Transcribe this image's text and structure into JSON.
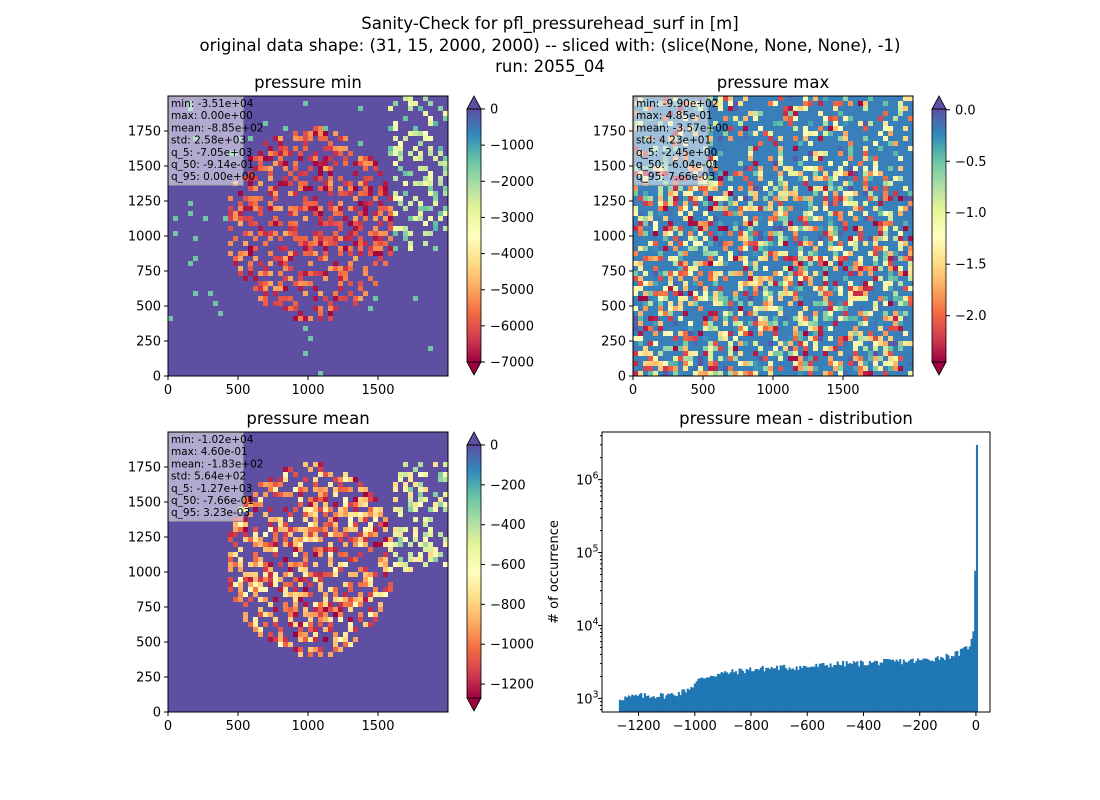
{
  "suptitle": [
    "Sanity-Check for pfl_pressurehead_surf in [m]",
    "original data shape: (31, 15, 2000, 2000) -- sliced with: (slice(None, None, None), -1)",
    "run: 2055_04"
  ],
  "colors": {
    "spectral_stops": [
      "#9e0142",
      "#d53e4f",
      "#f46d43",
      "#fdae61",
      "#fee08b",
      "#ffffbf",
      "#e6f598",
      "#abdda4",
      "#66c2a5",
      "#3288bd",
      "#5e4fa2"
    ],
    "hist_bar": "#1f77b4",
    "stats_box_bg": "#f5f5f5"
  },
  "chart_data": [
    {
      "type": "heatmap",
      "title": "pressure min",
      "xticks": [
        "0",
        "500",
        "1000",
        "1500"
      ],
      "yticks": [
        "0",
        "250",
        "500",
        "750",
        "1000",
        "1250",
        "1500",
        "1750"
      ],
      "xlim": [
        0,
        2000
      ],
      "ylim": [
        0,
        2000
      ],
      "colormap": "Spectral",
      "vmin": -7000,
      "vmax": 0,
      "colorbar_ticks": [
        "0",
        "−1000",
        "−2000",
        "−3000",
        "−4000",
        "−5000",
        "−6000",
        "−7000"
      ],
      "colorbar_tick_values": [
        0,
        -1000,
        -2000,
        -3000,
        -4000,
        -5000,
        -6000,
        -7000
      ],
      "extend_top_color": "#5e4fa2",
      "extend_bottom_color": "#9e0142",
      "background_value": 0,
      "stats": [
        "min: -3.51e+04",
        "max: 0.00e+00",
        "mean: -8.85e+02",
        "std: 2.58e+03",
        "q_5: -7.05e+03",
        "q_50: -9.14e-01",
        "q_95: 0.00e+00"
      ]
    },
    {
      "type": "heatmap",
      "title": "pressure max",
      "xticks": [
        "0",
        "500",
        "1000",
        "1500"
      ],
      "yticks": [
        "0",
        "250",
        "500",
        "750",
        "1000",
        "1250",
        "1500",
        "1750"
      ],
      "xlim": [
        0,
        2000
      ],
      "ylim": [
        0,
        2000
      ],
      "colormap": "Spectral",
      "vmin": -2.45,
      "vmax": 0.0077,
      "colorbar_ticks": [
        "0.0",
        "−0.5",
        "−1.0",
        "−1.5",
        "−2.0"
      ],
      "colorbar_tick_values": [
        0,
        -0.5,
        -1.0,
        -1.5,
        -2.0
      ],
      "extend_top_color": "#5e4fa2",
      "extend_bottom_color": "#9e0142",
      "background_value": -0.2,
      "stats": [
        "min: -9.90e+02",
        "max: 4.85e-01",
        "mean: -3.57e+00",
        "std: 4.23e+01",
        "q_5: -2.45e+00",
        "q_50: -6.04e-01",
        "q_95: 7.66e-03"
      ]
    },
    {
      "type": "heatmap",
      "title": "pressure mean",
      "xticks": [
        "0",
        "500",
        "1000",
        "1500"
      ],
      "yticks": [
        "0",
        "250",
        "500",
        "750",
        "1000",
        "1250",
        "1500",
        "1750"
      ],
      "xlim": [
        0,
        2000
      ],
      "ylim": [
        0,
        2000
      ],
      "colormap": "Spectral",
      "vmin": -1270,
      "vmax": 0.0032,
      "colorbar_ticks": [
        "0",
        "−200",
        "−400",
        "−600",
        "−800",
        "−1000",
        "−1200"
      ],
      "colorbar_tick_values": [
        0,
        -200,
        -400,
        -600,
        -800,
        -1000,
        -1200
      ],
      "extend_top_color": "#5e4fa2",
      "extend_bottom_color": "#9e0142",
      "background_value": -1,
      "stats": [
        "min: -1.02e+04",
        "max: 4.60e-01",
        "mean: -1.83e+02",
        "std: 5.64e+02",
        "q_5: -1.27e+03",
        "q_50: -7.66e-01",
        "q_95: 3.23e-03"
      ]
    },
    {
      "type": "bar",
      "title": "pressure mean - distribution",
      "ylabel": "# of occurrence",
      "yscale": "log",
      "xlim": [
        -1330,
        50
      ],
      "ylim": [
        650,
        4500000
      ],
      "xticks": [
        "−1200",
        "−1000",
        "−800",
        "−600",
        "−400",
        "−200",
        "0"
      ],
      "xtick_values": [
        -1200,
        -1000,
        -800,
        -600,
        -400,
        -200,
        0
      ],
      "yticks": [
        {
          "base": "10",
          "exp": "3"
        },
        {
          "base": "10",
          "exp": "4"
        },
        {
          "base": "10",
          "exp": "5"
        },
        {
          "base": "10",
          "exp": "6"
        }
      ],
      "ytick_values": [
        1000,
        10000,
        100000,
        1000000
      ],
      "bin_width": 6.35,
      "bin_edges_range": [
        -1270,
        0
      ],
      "hist_profile": [
        [
          -1270,
          1000
        ],
        [
          -1200,
          1080
        ],
        [
          -1100,
          1100
        ],
        [
          -1050,
          1200
        ],
        [
          -1010,
          1450
        ],
        [
          -990,
          1750
        ],
        [
          -950,
          2050
        ],
        [
          -900,
          2200
        ],
        [
          -800,
          2500
        ],
        [
          -700,
          2650
        ],
        [
          -600,
          2700
        ],
        [
          -500,
          2950
        ],
        [
          -400,
          3050
        ],
        [
          -300,
          3200
        ],
        [
          -200,
          3300
        ],
        [
          -100,
          3800
        ],
        [
          -60,
          4200
        ],
        [
          -30,
          5000
        ],
        [
          -15,
          6200
        ],
        [
          -8,
          9000
        ],
        [
          -4,
          20000
        ],
        [
          0,
          3000000
        ]
      ]
    }
  ]
}
